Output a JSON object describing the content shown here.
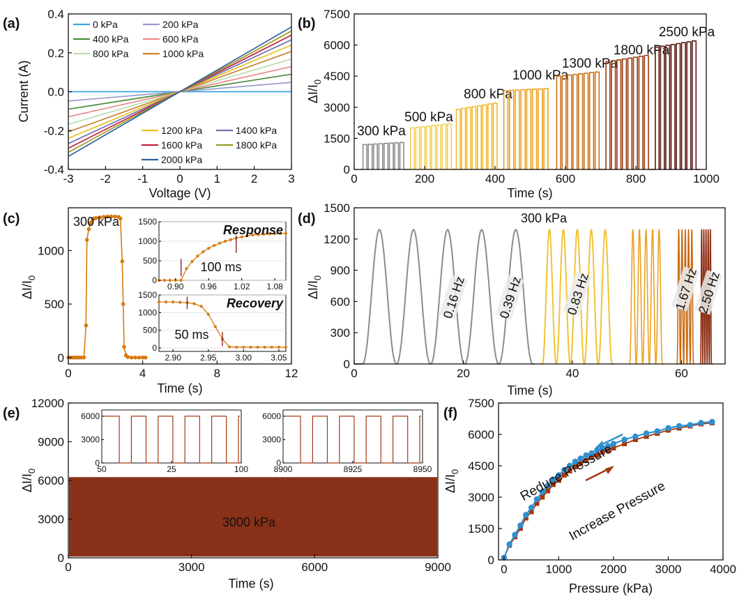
{
  "colors": {
    "axis": "#111111",
    "gray": "#8c8c8c",
    "yellow": "#f2c233",
    "orange": "#d77a10",
    "darkred": "#5a1410",
    "rust": "#a53810",
    "blue": "#2f8fcf",
    "inset_grid": "#dddddd"
  },
  "panels": {
    "a": "(a)",
    "b": "(b)",
    "c": "(c)",
    "d": "(d)",
    "e": "(e)",
    "f": "(f)"
  },
  "chart_data": [
    {
      "id": "a",
      "type": "line",
      "xlabel": "Voltage (V)",
      "ylabel": "Current (A)",
      "xlim": [
        -3,
        3
      ],
      "ylim": [
        -0.4,
        0.4
      ],
      "xticks": [
        "-3",
        "-2",
        "-1",
        "0",
        "1",
        "2",
        "3"
      ],
      "yticks": [
        "-0.4",
        "-0.2",
        "0.0",
        "0.2",
        "0.4"
      ],
      "series": [
        {
          "name": "0 kPa",
          "slope": 0.0,
          "color": "#3aa5e0"
        },
        {
          "name": "200 kPa",
          "slope": 0.016,
          "color": "#9a9ad0"
        },
        {
          "name": "400 kPa",
          "slope": 0.03,
          "color": "#4a8a3a"
        },
        {
          "name": "600 kPa",
          "slope": 0.043,
          "color": "#e88888"
        },
        {
          "name": "800 kPa",
          "slope": 0.056,
          "color": "#b8dcb0"
        },
        {
          "name": "1000 kPa",
          "slope": 0.069,
          "color": "#c88030"
        },
        {
          "name": "1200 kPa",
          "slope": 0.08,
          "color": "#e8c020"
        },
        {
          "name": "1400 kPa",
          "slope": 0.089,
          "color": "#7070b0"
        },
        {
          "name": "1600 kPa",
          "slope": 0.097,
          "color": "#c02040"
        },
        {
          "name": "1800 kPa",
          "slope": 0.104,
          "color": "#9a9a20"
        },
        {
          "name": "2000 kPa",
          "slope": 0.111,
          "color": "#3060a0"
        }
      ]
    },
    {
      "id": "b",
      "type": "line",
      "xlabel": "Time (s)",
      "ylabel": "ΔI/I",
      "xlim": [
        0,
        1000
      ],
      "ylim": [
        0,
        7500
      ],
      "xticks": [
        "0",
        "200",
        "400",
        "600",
        "800",
        "1000"
      ],
      "yticks": [
        "0",
        "1500",
        "3000",
        "4500",
        "6000",
        "7500"
      ],
      "segments": [
        {
          "label": "300 kPa",
          "t0": 25,
          "t1": 145,
          "peak": [
            1200,
            1300
          ],
          "color": "#8c8c8c"
        },
        {
          "label": "500 kPa",
          "t0": 160,
          "t1": 280,
          "peak": [
            2000,
            2200
          ],
          "color": "#f5cf57"
        },
        {
          "label": "800 kPa",
          "t0": 290,
          "t1": 410,
          "peak": [
            2900,
            3200
          ],
          "color": "#f2b82c"
        },
        {
          "label": "1000 kPa",
          "t0": 425,
          "t1": 555,
          "peak": [
            3800,
            3900
          ],
          "color": "#eba01e"
        },
        {
          "label": "1300 kPa",
          "t0": 575,
          "t1": 700,
          "peak": [
            4500,
            4700
          ],
          "color": "#c9701a"
        },
        {
          "label": "1800 kPa",
          "t0": 715,
          "t1": 840,
          "peak": [
            5200,
            5500
          ],
          "color": "#9a3a12"
        },
        {
          "label": "2500 kPa",
          "t0": 855,
          "t1": 975,
          "peak": [
            5900,
            6200
          ],
          "color": "#5a1410"
        }
      ]
    },
    {
      "id": "c",
      "type": "line",
      "annotation": "300 kPa",
      "xlabel": "Time (s)",
      "ylabel": "ΔI/I",
      "xlim": [
        0,
        12
      ],
      "ylim": [
        -60,
        1400
      ],
      "xticks": [
        "0",
        "4",
        "8",
        "12"
      ],
      "yticks": [
        "0",
        "500",
        "1000"
      ],
      "points_t": [
        0.0,
        0.2,
        0.4,
        0.6,
        0.8,
        0.9,
        0.95,
        1.0,
        1.1,
        1.2,
        1.3,
        1.4,
        1.5,
        1.7,
        1.9,
        2.1,
        2.3,
        2.5,
        2.7,
        2.8,
        2.9,
        2.95,
        3.0,
        3.1,
        3.2,
        3.4,
        3.6,
        3.8,
        4.0
      ],
      "points_v": [
        0,
        0,
        0,
        0,
        0,
        0,
        300,
        1100,
        1200,
        1260,
        1290,
        1300,
        1305,
        1310,
        1315,
        1318,
        1318,
        1318,
        1315,
        1300,
        900,
        500,
        100,
        20,
        5,
        0,
        0,
        0,
        0
      ],
      "insets": [
        {
          "title": "Response",
          "note": "100 ms",
          "xlim": [
            0.87,
            1.1
          ],
          "ylim": [
            0,
            1500
          ],
          "xticks": [
            "0.90",
            "0.96",
            "1.02",
            "1.08"
          ],
          "yticks": [
            "0",
            "500",
            "1000",
            "1500"
          ],
          "t": [
            0.87,
            0.88,
            0.89,
            0.9,
            0.91,
            0.92,
            0.93,
            0.94,
            0.95,
            0.96,
            0.97,
            0.98,
            0.99,
            1.0,
            1.01,
            1.02,
            1.03,
            1.04,
            1.05,
            1.06,
            1.07,
            1.08,
            1.09,
            1.1
          ],
          "v": [
            0,
            0,
            0,
            0,
            0,
            300,
            480,
            620,
            730,
            820,
            890,
            950,
            1000,
            1040,
            1080,
            1110,
            1140,
            1160,
            1170,
            1180,
            1190,
            1195,
            1198,
            1200
          ]
        },
        {
          "title": "Recovery",
          "note": "50 ms",
          "xlim": [
            2.88,
            3.06
          ],
          "ylim": [
            -100,
            1500
          ],
          "xticks": [
            "2.90",
            "2.95",
            "3.00",
            "3.05"
          ],
          "yticks": [
            "0",
            "500",
            "1000",
            "1500"
          ],
          "t": [
            2.88,
            2.89,
            2.9,
            2.91,
            2.92,
            2.93,
            2.94,
            2.95,
            2.96,
            2.97,
            2.98,
            2.99,
            3.0,
            3.01,
            3.02,
            3.03,
            3.04,
            3.05,
            3.06
          ],
          "v": [
            1300,
            1300,
            1300,
            1290,
            1280,
            1250,
            1180,
            950,
            600,
            250,
            30,
            20,
            20,
            20,
            20,
            20,
            20,
            20,
            20
          ]
        }
      ]
    },
    {
      "id": "d",
      "type": "line",
      "annotation": "300 kPa",
      "xlabel": "Time (s)",
      "ylabel": "ΔI/I",
      "xlim": [
        0,
        68
      ],
      "ylim": [
        0,
        1500
      ],
      "xticks": [
        "0",
        "20",
        "40",
        "60"
      ],
      "yticks": [
        "0",
        "300",
        "600",
        "900",
        "1200",
        "1500"
      ],
      "segments": [
        {
          "label": "0.16 Hz",
          "t0": 1.5,
          "n": 5,
          "period": 6.25,
          "color": "#8c8c8c"
        },
        {
          "label": "0.39 Hz",
          "t0": 34.5,
          "n": 5,
          "period": 2.56,
          "color": "#f2c233"
        },
        {
          "label": "0.83 Hz",
          "t0": 50.5,
          "n": 5,
          "period": 1.2,
          "color": "#eaa021"
        },
        {
          "label": "1.67 Hz",
          "t0": 59.2,
          "n": 5,
          "period": 0.6,
          "color": "#c96a14"
        },
        {
          "label": "2.50 Hz",
          "t0": 63.5,
          "n": 5,
          "period": 0.4,
          "color": "#8a2a10"
        }
      ],
      "peak": 1290
    },
    {
      "id": "e",
      "type": "area",
      "annotation": "3000 kPa",
      "xlabel": "Time (s)",
      "ylabel": "ΔI/I",
      "xlim": [
        0,
        9000
      ],
      "ylim": [
        0,
        12000
      ],
      "xticks": [
        "0",
        "3000",
        "6000",
        "9000"
      ],
      "yticks": [
        "0",
        "3000",
        "6000",
        "9000",
        "12000"
      ],
      "band_min": 100,
      "band_max": 6250,
      "insets": [
        {
          "xticks": [
            "50",
            "25",
            "100"
          ],
          "yticks": [
            "0",
            "3000",
            "6000"
          ],
          "peak": 6000,
          "cycles": 5
        },
        {
          "xticks": [
            "8900",
            "8925",
            "8950"
          ],
          "yticks": [
            "0",
            "3000",
            "6000"
          ],
          "peak": 6000,
          "cycles": 5
        }
      ]
    },
    {
      "id": "f",
      "type": "scatter",
      "xlabel": "Pressure (kPa)",
      "ylabel": "ΔI/I",
      "xlim": [
        -100,
        4000
      ],
      "ylim": [
        0,
        7500
      ],
      "xticks": [
        "0",
        "1000",
        "2000",
        "3000",
        "4000"
      ],
      "yticks": [
        "0",
        "1500",
        "3000",
        "4500",
        "6000",
        "7500"
      ],
      "series": [
        {
          "name": "Increase Pressure",
          "color": "#a53810",
          "x": [
            0,
            100,
            200,
            300,
            400,
            500,
            600,
            700,
            800,
            900,
            1000,
            1100,
            1200,
            1300,
            1400,
            1500,
            1600,
            1700,
            1800,
            1900,
            2000,
            2200,
            2400,
            2600,
            2800,
            3000,
            3200,
            3400,
            3600,
            3800
          ],
          "y": [
            100,
            700,
            1100,
            1500,
            2000,
            2300,
            2700,
            3000,
            3300,
            3600,
            3800,
            4050,
            4250,
            4450,
            4600,
            4750,
            4900,
            5000,
            5150,
            5250,
            5350,
            5550,
            5750,
            5900,
            6050,
            6200,
            6300,
            6400,
            6500,
            6550
          ]
        },
        {
          "name": "Reduce Pressure",
          "color": "#2f8fcf",
          "x": [
            0,
            100,
            200,
            300,
            400,
            500,
            600,
            700,
            800,
            900,
            1000,
            1100,
            1200,
            1300,
            1400,
            1500,
            1600,
            1700,
            1800,
            1900,
            2000,
            2200,
            2400,
            2600,
            2800,
            3000,
            3200,
            3400,
            3600,
            3800
          ],
          "y": [
            100,
            750,
            1200,
            1650,
            2150,
            2500,
            2900,
            3250,
            3550,
            3850,
            4050,
            4300,
            4500,
            4700,
            4850,
            5000,
            5100,
            5250,
            5350,
            5450,
            5550,
            5750,
            5900,
            6050,
            6150,
            6300,
            6400,
            6450,
            6550,
            6600
          ]
        }
      ]
    }
  ]
}
